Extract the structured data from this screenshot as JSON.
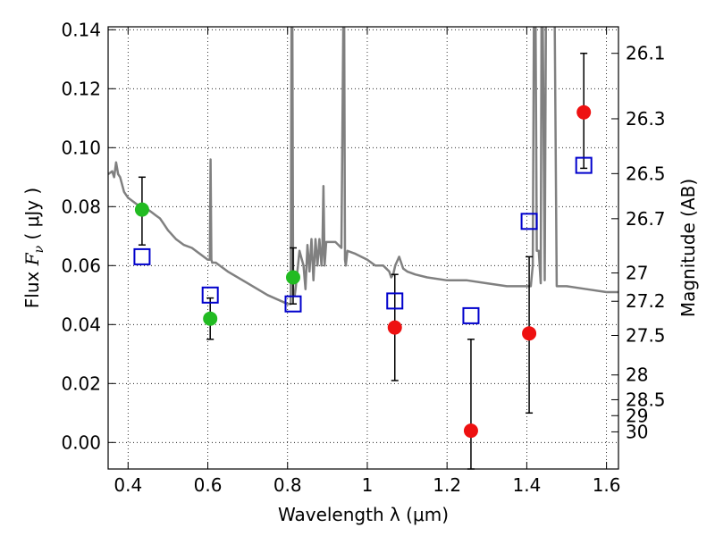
{
  "chart_data": {
    "type": "scatter",
    "xlabel": "Wavelength  λ (μm)",
    "ylabel_prefix": "Flux  ",
    "ylabel_symbol": "F",
    "ylabel_sub": "ν",
    "ylabel_units": " ( μJy )",
    "y2label": "Magnitude (AB)",
    "xlim": [
      0.35,
      1.63
    ],
    "ylim": [
      -0.009,
      0.141
    ],
    "grid": true,
    "x_ticks": [
      0.4,
      0.6,
      0.8,
      1.0,
      1.2,
      1.4,
      1.6
    ],
    "x_tick_labels": [
      "0.4",
      "0.6",
      "0.8",
      "1",
      "1.2",
      "1.4",
      "1.6"
    ],
    "y_ticks": [
      0.0,
      0.02,
      0.04,
      0.06,
      0.08,
      0.1,
      0.12,
      0.14
    ],
    "y_tick_labels": [
      "0.00",
      "0.02",
      "0.04",
      "0.06",
      "0.08",
      "0.10",
      "0.12",
      "0.14"
    ],
    "y2_ticks": [
      {
        "label": "26.1",
        "flux": 0.132
      },
      {
        "label": "26.3",
        "flux": 0.1098
      },
      {
        "label": "26.5",
        "flux": 0.0912
      },
      {
        "label": "26.7",
        "flux": 0.0759
      },
      {
        "label": "27",
        "flux": 0.0575
      },
      {
        "label": "27.2",
        "flux": 0.0479
      },
      {
        "label": "27.5",
        "flux": 0.0363
      },
      {
        "label": "28",
        "flux": 0.0229
      },
      {
        "label": "28.5",
        "flux": 0.0145
      },
      {
        "label": "29",
        "flux": 0.0091
      },
      {
        "label": "30",
        "flux": 0.0036
      }
    ],
    "series": [
      {
        "color": "#22bb22",
        "marker": "circle",
        "points": [
          {
            "x": 0.435,
            "y": 0.079,
            "err_lo": 0.067,
            "err_hi": 0.09
          },
          {
            "x": 0.606,
            "y": 0.042,
            "err_lo": 0.035,
            "err_hi": 0.049
          },
          {
            "x": 0.814,
            "y": 0.056,
            "err_lo": 0.047,
            "err_hi": 0.066
          }
        ]
      },
      {
        "color": "#ee1111",
        "marker": "circle",
        "points": [
          {
            "x": 1.069,
            "y": 0.039,
            "err_lo": 0.021,
            "err_hi": 0.057
          },
          {
            "x": 1.26,
            "y": 0.004,
            "err_lo": -0.009,
            "err_hi": 0.035
          },
          {
            "x": 1.406,
            "y": 0.037,
            "err_lo": 0.01,
            "err_hi": 0.063
          },
          {
            "x": 1.543,
            "y": 0.112,
            "err_lo": 0.093,
            "err_hi": 0.132
          }
        ]
      },
      {
        "color": "#0000cc",
        "marker": "open-square",
        "points": [
          {
            "x": 0.435,
            "y": 0.063
          },
          {
            "x": 0.606,
            "y": 0.05
          },
          {
            "x": 0.814,
            "y": 0.047
          },
          {
            "x": 1.069,
            "y": 0.048
          },
          {
            "x": 1.26,
            "y": 0.043
          },
          {
            "x": 1.406,
            "y": 0.075
          },
          {
            "x": 1.543,
            "y": 0.094
          }
        ]
      }
    ],
    "model_spectrum": {
      "color": "#808080",
      "x": [
        0.35,
        0.36,
        0.365,
        0.37,
        0.375,
        0.38,
        0.39,
        0.4,
        0.41,
        0.42,
        0.43,
        0.44,
        0.45,
        0.46,
        0.47,
        0.48,
        0.49,
        0.5,
        0.52,
        0.54,
        0.56,
        0.58,
        0.6,
        0.605,
        0.607,
        0.609,
        0.611,
        0.615,
        0.62,
        0.65,
        0.7,
        0.75,
        0.8,
        0.808,
        0.81,
        0.812,
        0.814,
        0.818,
        0.82,
        0.83,
        0.84,
        0.845,
        0.85,
        0.855,
        0.86,
        0.865,
        0.87,
        0.875,
        0.88,
        0.885,
        0.887,
        0.89,
        0.893,
        0.897,
        0.9,
        0.92,
        0.935,
        0.94,
        0.942,
        0.944,
        0.946,
        0.95,
        0.97,
        1.0,
        1.02,
        1.04,
        1.055,
        1.06,
        1.065,
        1.07,
        1.08,
        1.09,
        1.1,
        1.12,
        1.15,
        1.2,
        1.25,
        1.3,
        1.35,
        1.38,
        1.4,
        1.41,
        1.415,
        1.418,
        1.422,
        1.425,
        1.43,
        1.435,
        1.437,
        1.44,
        1.445,
        1.448,
        1.455,
        1.465,
        1.468,
        1.47,
        1.475,
        1.48,
        1.5,
        1.55,
        1.6,
        1.63
      ],
      "y": [
        0.091,
        0.092,
        0.09,
        0.095,
        0.091,
        0.09,
        0.085,
        0.083,
        0.082,
        0.081,
        0.08,
        0.08,
        0.079,
        0.078,
        0.077,
        0.076,
        0.074,
        0.072,
        0.069,
        0.067,
        0.066,
        0.064,
        0.062,
        0.062,
        0.096,
        0.062,
        0.061,
        0.061,
        0.061,
        0.058,
        0.054,
        0.05,
        0.047,
        0.047,
        0.145,
        0.145,
        0.05,
        0.05,
        0.052,
        0.065,
        0.06,
        0.052,
        0.067,
        0.058,
        0.069,
        0.055,
        0.069,
        0.06,
        0.069,
        0.06,
        0.064,
        0.087,
        0.06,
        0.068,
        0.068,
        0.068,
        0.066,
        0.145,
        0.145,
        0.062,
        0.06,
        0.065,
        0.064,
        0.062,
        0.06,
        0.06,
        0.058,
        0.056,
        0.057,
        0.06,
        0.063,
        0.059,
        0.058,
        0.057,
        0.056,
        0.055,
        0.055,
        0.054,
        0.053,
        0.053,
        0.053,
        0.053,
        0.06,
        0.145,
        0.145,
        0.065,
        0.065,
        0.054,
        0.145,
        0.145,
        0.055,
        0.145,
        0.145,
        0.145,
        0.145,
        0.145,
        0.053,
        0.053,
        0.053,
        0.052,
        0.051,
        0.051
      ]
    }
  }
}
